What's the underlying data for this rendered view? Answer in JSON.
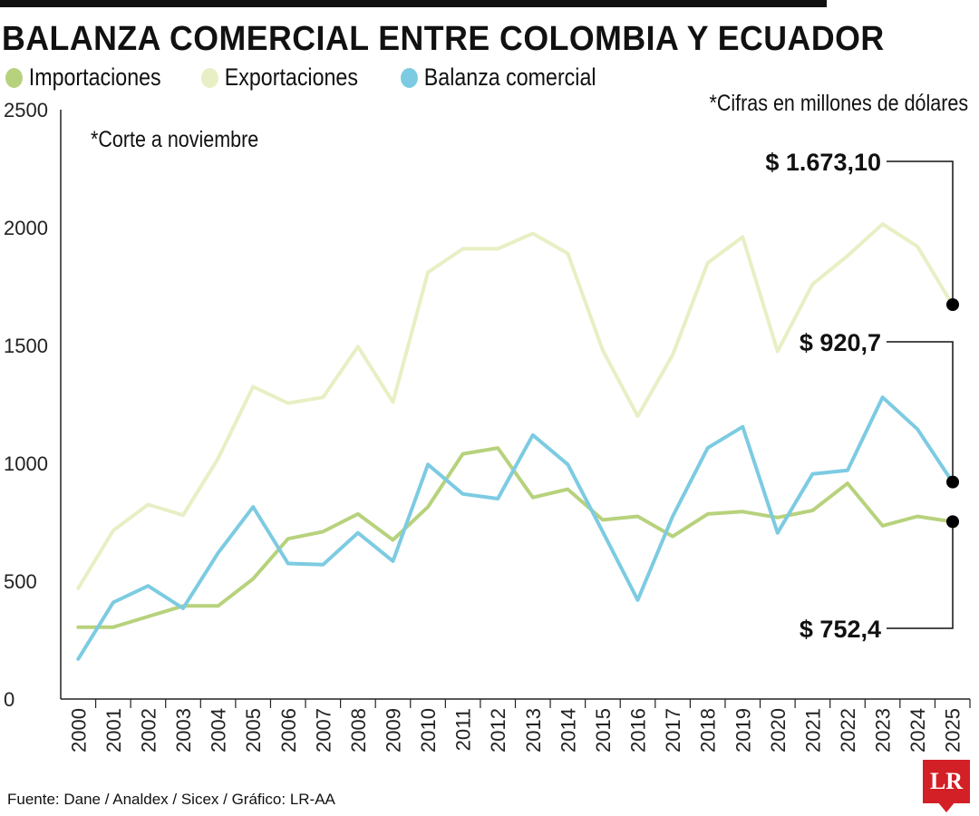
{
  "title": "BALANZA COMERCIAL ENTRE COLOMBIA Y ECUADOR",
  "notes": {
    "units": "*Cifras en millones de dólares",
    "cutoff": "*Corte a noviembre"
  },
  "source": "Fuente: Dane / Analdex / Sicex / Gráfico: LR-AA",
  "logo": "LR",
  "colors": {
    "importaciones": "#b7d27c",
    "exportaciones": "#e8efc4",
    "balanza": "#7ccbe2",
    "logo": "#d31f26"
  },
  "chart_data": {
    "type": "line",
    "title": "BALANZA COMERCIAL ENTRE COLOMBIA Y ECUADOR",
    "xlabel": "",
    "ylabel": "",
    "ylim": [
      0,
      2500
    ],
    "yticks": [
      "0",
      "500",
      "1000",
      "1500",
      "2000",
      "2500"
    ],
    "grid": false,
    "legend": "top-left",
    "categories": [
      "2000",
      "2001",
      "2002",
      "2003",
      "2004",
      "2005",
      "2006",
      "2007",
      "2008",
      "2009",
      "2010",
      "2011",
      "2012",
      "2013",
      "2014",
      "2015",
      "2016",
      "2017",
      "2018",
      "2019",
      "2020",
      "2021",
      "2022",
      "2023",
      "2024",
      "2025"
    ],
    "series": [
      {
        "name": "Importaciones",
        "color": "#b7d27c",
        "values": [
          305,
          305,
          350,
          395,
          395,
          510,
          680,
          710,
          785,
          675,
          815,
          1040,
          1065,
          855,
          890,
          760,
          775,
          690,
          785,
          795,
          770,
          800,
          915,
          735,
          775,
          752.4
        ]
      },
      {
        "name": "Exportaciones",
        "color": "#e8efc4",
        "values": [
          470,
          715,
          825,
          780,
          1020,
          1325,
          1255,
          1280,
          1495,
          1260,
          1810,
          1910,
          1910,
          1975,
          1890,
          1480,
          1200,
          1460,
          1850,
          1960,
          1475,
          1760,
          1880,
          2015,
          1920,
          1673.1
        ]
      },
      {
        "name": "Balanza comercial",
        "color": "#7ccbe2",
        "values": [
          170,
          410,
          480,
          385,
          620,
          815,
          575,
          570,
          705,
          585,
          995,
          870,
          850,
          1120,
          995,
          710,
          420,
          775,
          1065,
          1155,
          705,
          955,
          970,
          1280,
          1145,
          920.7
        ]
      }
    ],
    "callouts": [
      {
        "series": 1,
        "label": "$ 1.673,10"
      },
      {
        "series": 2,
        "label": "$ 920,7"
      },
      {
        "series": 0,
        "label": "$ 752,4"
      }
    ]
  }
}
